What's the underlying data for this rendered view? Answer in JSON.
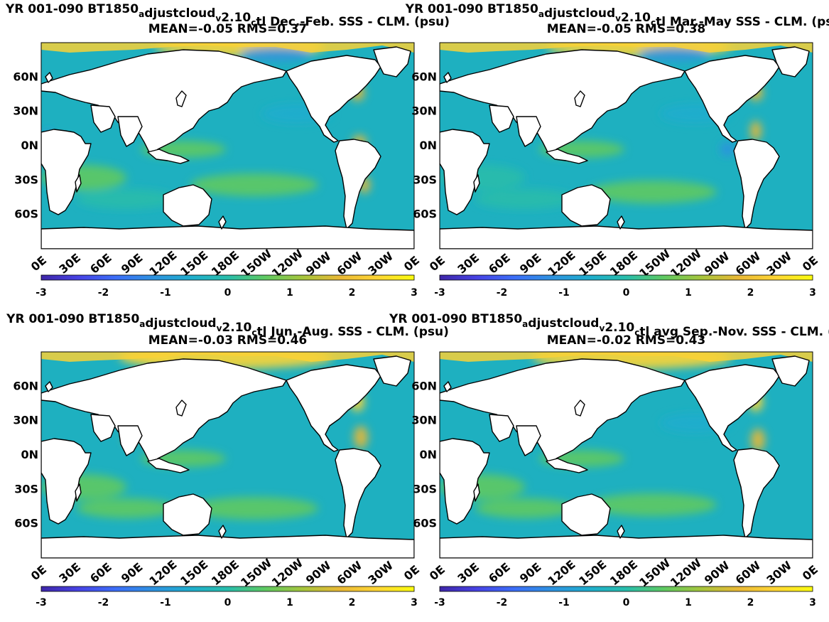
{
  "chart_data": [
    {
      "type": "heatmap",
      "title": "YR 001-090 BT1850_adjustcloud_v2.10_ctl  Dec.-Feb. SSS - CLM. (psu)",
      "title_parts": [
        {
          "t": "YR 001-090 BT1850"
        },
        {
          "t": "a",
          "sub": true
        },
        {
          "t": "djustcloud"
        },
        {
          "t": "v",
          "sub": true
        },
        {
          "t": "2.10"
        },
        {
          "t": "c",
          "sub": true
        },
        {
          "t": "tl  Dec.-Feb. SSS - CLM. (psu)"
        }
      ],
      "subtitle": "MEAN=-0.05   RMS=0.37",
      "mean": -0.05,
      "rms": 0.37,
      "yticklabels": [
        "60N",
        "30N",
        "0N",
        "30S",
        "60S"
      ],
      "xticklabels": [
        "0E",
        "30E",
        "60E",
        "90E",
        "120E",
        "150E",
        "180E",
        "150W",
        "120W",
        "90W",
        "60W",
        "30W",
        "0E"
      ],
      "colorbar": {
        "ticks": [
          "-3",
          "-2",
          "-1",
          "0",
          "1",
          "2",
          "3"
        ],
        "clim": [
          -3,
          3
        ]
      }
    },
    {
      "type": "heatmap",
      "title": "YR 001-090 BT1850_adjustcloud_v2.10_ctl Mar.-May SSS - CLM. (psu)",
      "title_parts": [
        {
          "t": "YR 001-090 BT1850"
        },
        {
          "t": "a",
          "sub": true
        },
        {
          "t": "djustcloud"
        },
        {
          "t": "v",
          "sub": true
        },
        {
          "t": "2.10"
        },
        {
          "t": "c",
          "sub": true
        },
        {
          "t": "tl Mar.-May SSS - CLM. (psu)"
        }
      ],
      "subtitle": "MEAN=-0.05   RMS=0.38",
      "mean": -0.05,
      "rms": 0.38,
      "yticklabels": [
        "60N",
        "30N",
        "0N",
        "30S",
        "60S"
      ],
      "xticklabels": [
        "0E",
        "30E",
        "60E",
        "90E",
        "120E",
        "150E",
        "180E",
        "150W",
        "120W",
        "90W",
        "60W",
        "30W",
        "0E"
      ],
      "colorbar": {
        "ticks": [
          "-3",
          "-2",
          "-1",
          "0",
          "1",
          "2",
          "3"
        ],
        "clim": [
          -3,
          3
        ]
      }
    },
    {
      "type": "heatmap",
      "title": "YR 001-090 BT1850_adjustcloud_v2.10_ctl Jun.-Aug. SSS - CLM. (psu)",
      "title_parts": [
        {
          "t": "YR 001-090 BT1850"
        },
        {
          "t": "a",
          "sub": true
        },
        {
          "t": "djustcloud"
        },
        {
          "t": "v",
          "sub": true
        },
        {
          "t": "2.10"
        },
        {
          "t": "c",
          "sub": true
        },
        {
          "t": "tl Jun.-Aug. SSS - CLM. (psu)"
        }
      ],
      "subtitle": "MEAN=-0.03   RMS=0.46",
      "mean": -0.03,
      "rms": 0.46,
      "yticklabels": [
        "60N",
        "30N",
        "0N",
        "30S",
        "60S"
      ],
      "xticklabels": [
        "0E",
        "30E",
        "60E",
        "90E",
        "120E",
        "150E",
        "180E",
        "150W",
        "120W",
        "90W",
        "60W",
        "30W",
        "0E"
      ],
      "colorbar": {
        "ticks": [
          "-3",
          "-2",
          "-1",
          "0",
          "1",
          "2",
          "3"
        ],
        "clim": [
          -3,
          3
        ]
      }
    },
    {
      "type": "heatmap",
      "title": "YR 001-090 BT1850_adjustcloud_v2.10_ctl avg Sep.-Nov. SSS - CLM. (psu)",
      "title_parts": [
        {
          "t": "YR 001-090 BT1850"
        },
        {
          "t": "a",
          "sub": true
        },
        {
          "t": "djustcloud"
        },
        {
          "t": "v",
          "sub": true
        },
        {
          "t": "2.10"
        },
        {
          "t": "c",
          "sub": true
        },
        {
          "t": "tl avg Sep.-Nov. SSS - CLM. (psu)"
        }
      ],
      "subtitle": "MEAN=-0.02   RMS=0.43",
      "mean": -0.02,
      "rms": 0.43,
      "yticklabels": [
        "60N",
        "30N",
        "0N",
        "30S",
        "60S"
      ],
      "xticklabels": [
        "0E",
        "30E",
        "60E",
        "90E",
        "120E",
        "150E",
        "180E",
        "150W",
        "120W",
        "90W",
        "60W",
        "30W",
        "0E"
      ],
      "colorbar": {
        "ticks": [
          "-3",
          "-2",
          "-1",
          "0",
          "1",
          "2",
          "3"
        ],
        "clim": [
          -3,
          3
        ]
      }
    }
  ],
  "colormap": [
    "#3e26a8",
    "#4743e4",
    "#3c6ef7",
    "#2e92e0",
    "#1fadcd",
    "#28bdab",
    "#5ec962",
    "#a5c53d",
    "#e9b835",
    "#fed535",
    "#f9fb0e"
  ],
  "colors": {
    "land": "#ffffff",
    "ocean_base": "#1eb0c0",
    "coast": "#000000"
  }
}
